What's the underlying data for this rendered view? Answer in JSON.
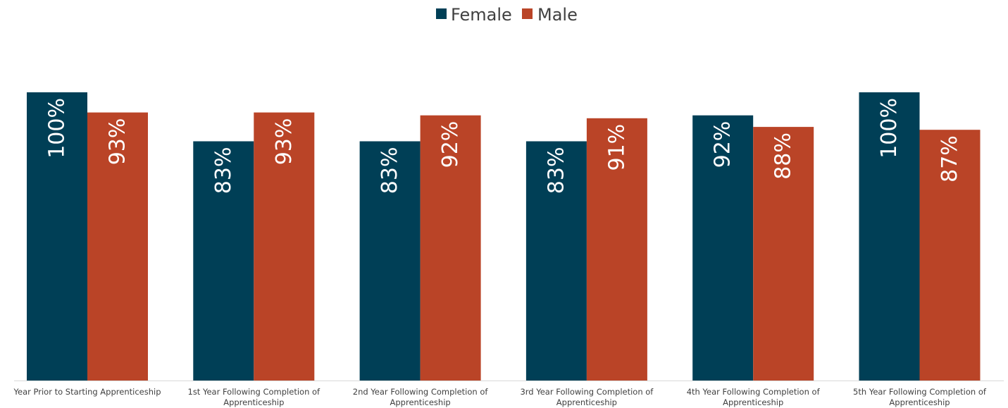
{
  "chart_data": {
    "type": "bar",
    "categories": [
      [
        "Year Prior to Starting Apprenticeship"
      ],
      [
        "1st Year Following Completion of",
        "Apprenticeship"
      ],
      [
        "2nd Year Following Completion of",
        "Apprenticeship"
      ],
      [
        "3rd Year Following Completion of",
        "Apprenticeship"
      ],
      [
        "4th Year Following Completion of",
        "Apprenticeship"
      ],
      [
        "5th Year Following Completion of",
        "Apprenticeship"
      ]
    ],
    "series": [
      {
        "name": "Female",
        "color": "#003F56",
        "values": [
          100,
          83,
          83,
          83,
          92,
          100
        ],
        "labels": [
          "100%",
          "83%",
          "83%",
          "83%",
          "92%",
          "100%"
        ]
      },
      {
        "name": "Male",
        "color": "#BA4427",
        "values": [
          93,
          93,
          92,
          91,
          88,
          87
        ],
        "labels": [
          "93%",
          "93%",
          "92%",
          "91%",
          "88%",
          "87%"
        ]
      }
    ],
    "ylim": [
      0,
      100
    ],
    "grid": false,
    "legend_position": "top-center",
    "axis_color": "#D9D9D9",
    "data_labels": "inside-end-rotated"
  }
}
